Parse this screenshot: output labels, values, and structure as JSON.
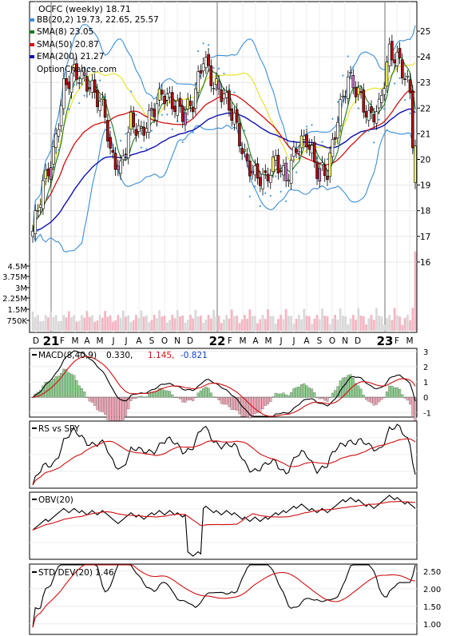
{
  "chart_data": [
    {
      "panel": "price",
      "type": "candlestick",
      "title": "OCFC (weekly) 18.71",
      "legend": [
        {
          "label": "BB(20,2) 19.73, 22.65, 25.57",
          "color": "#3b8fd9"
        },
        {
          "label": "SMA(8) 23.05",
          "color": "#1a7a1a"
        },
        {
          "label": "SMA(50) 20.87",
          "color": "#d01010"
        },
        {
          "label": "EMA(200) 21.27",
          "color": "#1010b0"
        }
      ],
      "watermark": "OptionChance.com",
      "ylim": [
        16,
        25.6
      ],
      "y_ticks": [
        25,
        24,
        23,
        22,
        21,
        20,
        19,
        18,
        17,
        16
      ],
      "volume_ticks": [
        "4.5M",
        "3.75M",
        "3M",
        "2.25M",
        "1.5M",
        "750K"
      ],
      "x_labels": [
        "D",
        "21",
        "F",
        "M",
        "A",
        "M",
        "J",
        "J",
        "A",
        "S",
        "O",
        "N",
        "D",
        "22",
        "F",
        "M",
        "A",
        "M",
        "J",
        "J",
        "A",
        "S",
        "O",
        "N",
        "D",
        "23",
        "F",
        "M"
      ],
      "x_year_labels": [
        "21",
        "22",
        "23"
      ],
      "last_close": 18.71,
      "sma8_last": 23.05,
      "sma50_last": 20.87,
      "ema200_last": 21.27,
      "bb_last": [
        19.73,
        22.65,
        25.57
      ]
    },
    {
      "panel": "macd",
      "type": "line",
      "label": "MACD(8,40,9)",
      "values_text": [
        "0.330,",
        "1.145,",
        "-0.821"
      ],
      "value_colors": [
        "#000000",
        "#d01010",
        "#1040c0"
      ],
      "ylim": [
        -1.3,
        3.2
      ],
      "y_ticks": [
        "3",
        "2",
        "1",
        "0",
        "-1"
      ]
    },
    {
      "panel": "rs",
      "type": "line",
      "label": "RS vs SPY",
      "y_ticks": []
    },
    {
      "panel": "obv",
      "type": "line",
      "label": "OBV(20)",
      "y_ticks": []
    },
    {
      "panel": "stddev",
      "type": "line",
      "label": "STD DEV(20) 1.46",
      "ylim": [
        0.7,
        2.7
      ],
      "y_ticks": [
        "2.50",
        "2.00",
        "1.50",
        "1.00"
      ]
    }
  ]
}
